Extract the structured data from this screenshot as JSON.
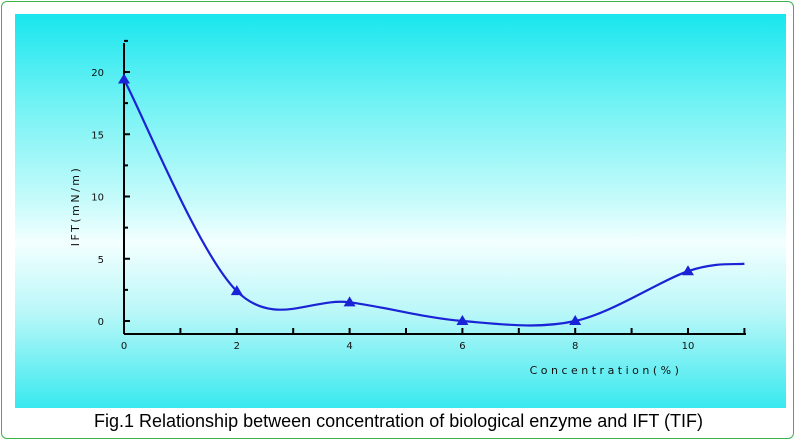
{
  "caption": "Fig.1 Relationship between concentration of biological enzyme and IFT (TIF)",
  "colors": {
    "frame": "#3fb24a",
    "line": "#1a23d6",
    "marker": "#1a23d6",
    "axis": "#000000"
  },
  "chart_data": {
    "type": "line",
    "title": "",
    "xlabel": "Concentration(%)",
    "ylabel": "IFT(mN/m)",
    "xlim": [
      0,
      11
    ],
    "ylim": [
      -1,
      22
    ],
    "xticks": [
      0,
      2,
      4,
      6,
      8,
      10
    ],
    "xtick_labels": [
      "0",
      "2",
      "4",
      "6",
      "8",
      "10"
    ],
    "yticks": [
      0,
      5,
      10,
      15,
      20
    ],
    "ytick_labels": [
      "0",
      "5",
      "10",
      "15",
      "20"
    ],
    "grid": false,
    "series": [
      {
        "marker": "triangle",
        "x": [
          0,
          2,
          4,
          6,
          8,
          10
        ],
        "y": [
          19.4,
          2.4,
          1.5,
          0.0,
          0.0,
          4.0
        ],
        "curve_extends_to": {
          "x": 11,
          "y": 4.6
        }
      }
    ]
  }
}
